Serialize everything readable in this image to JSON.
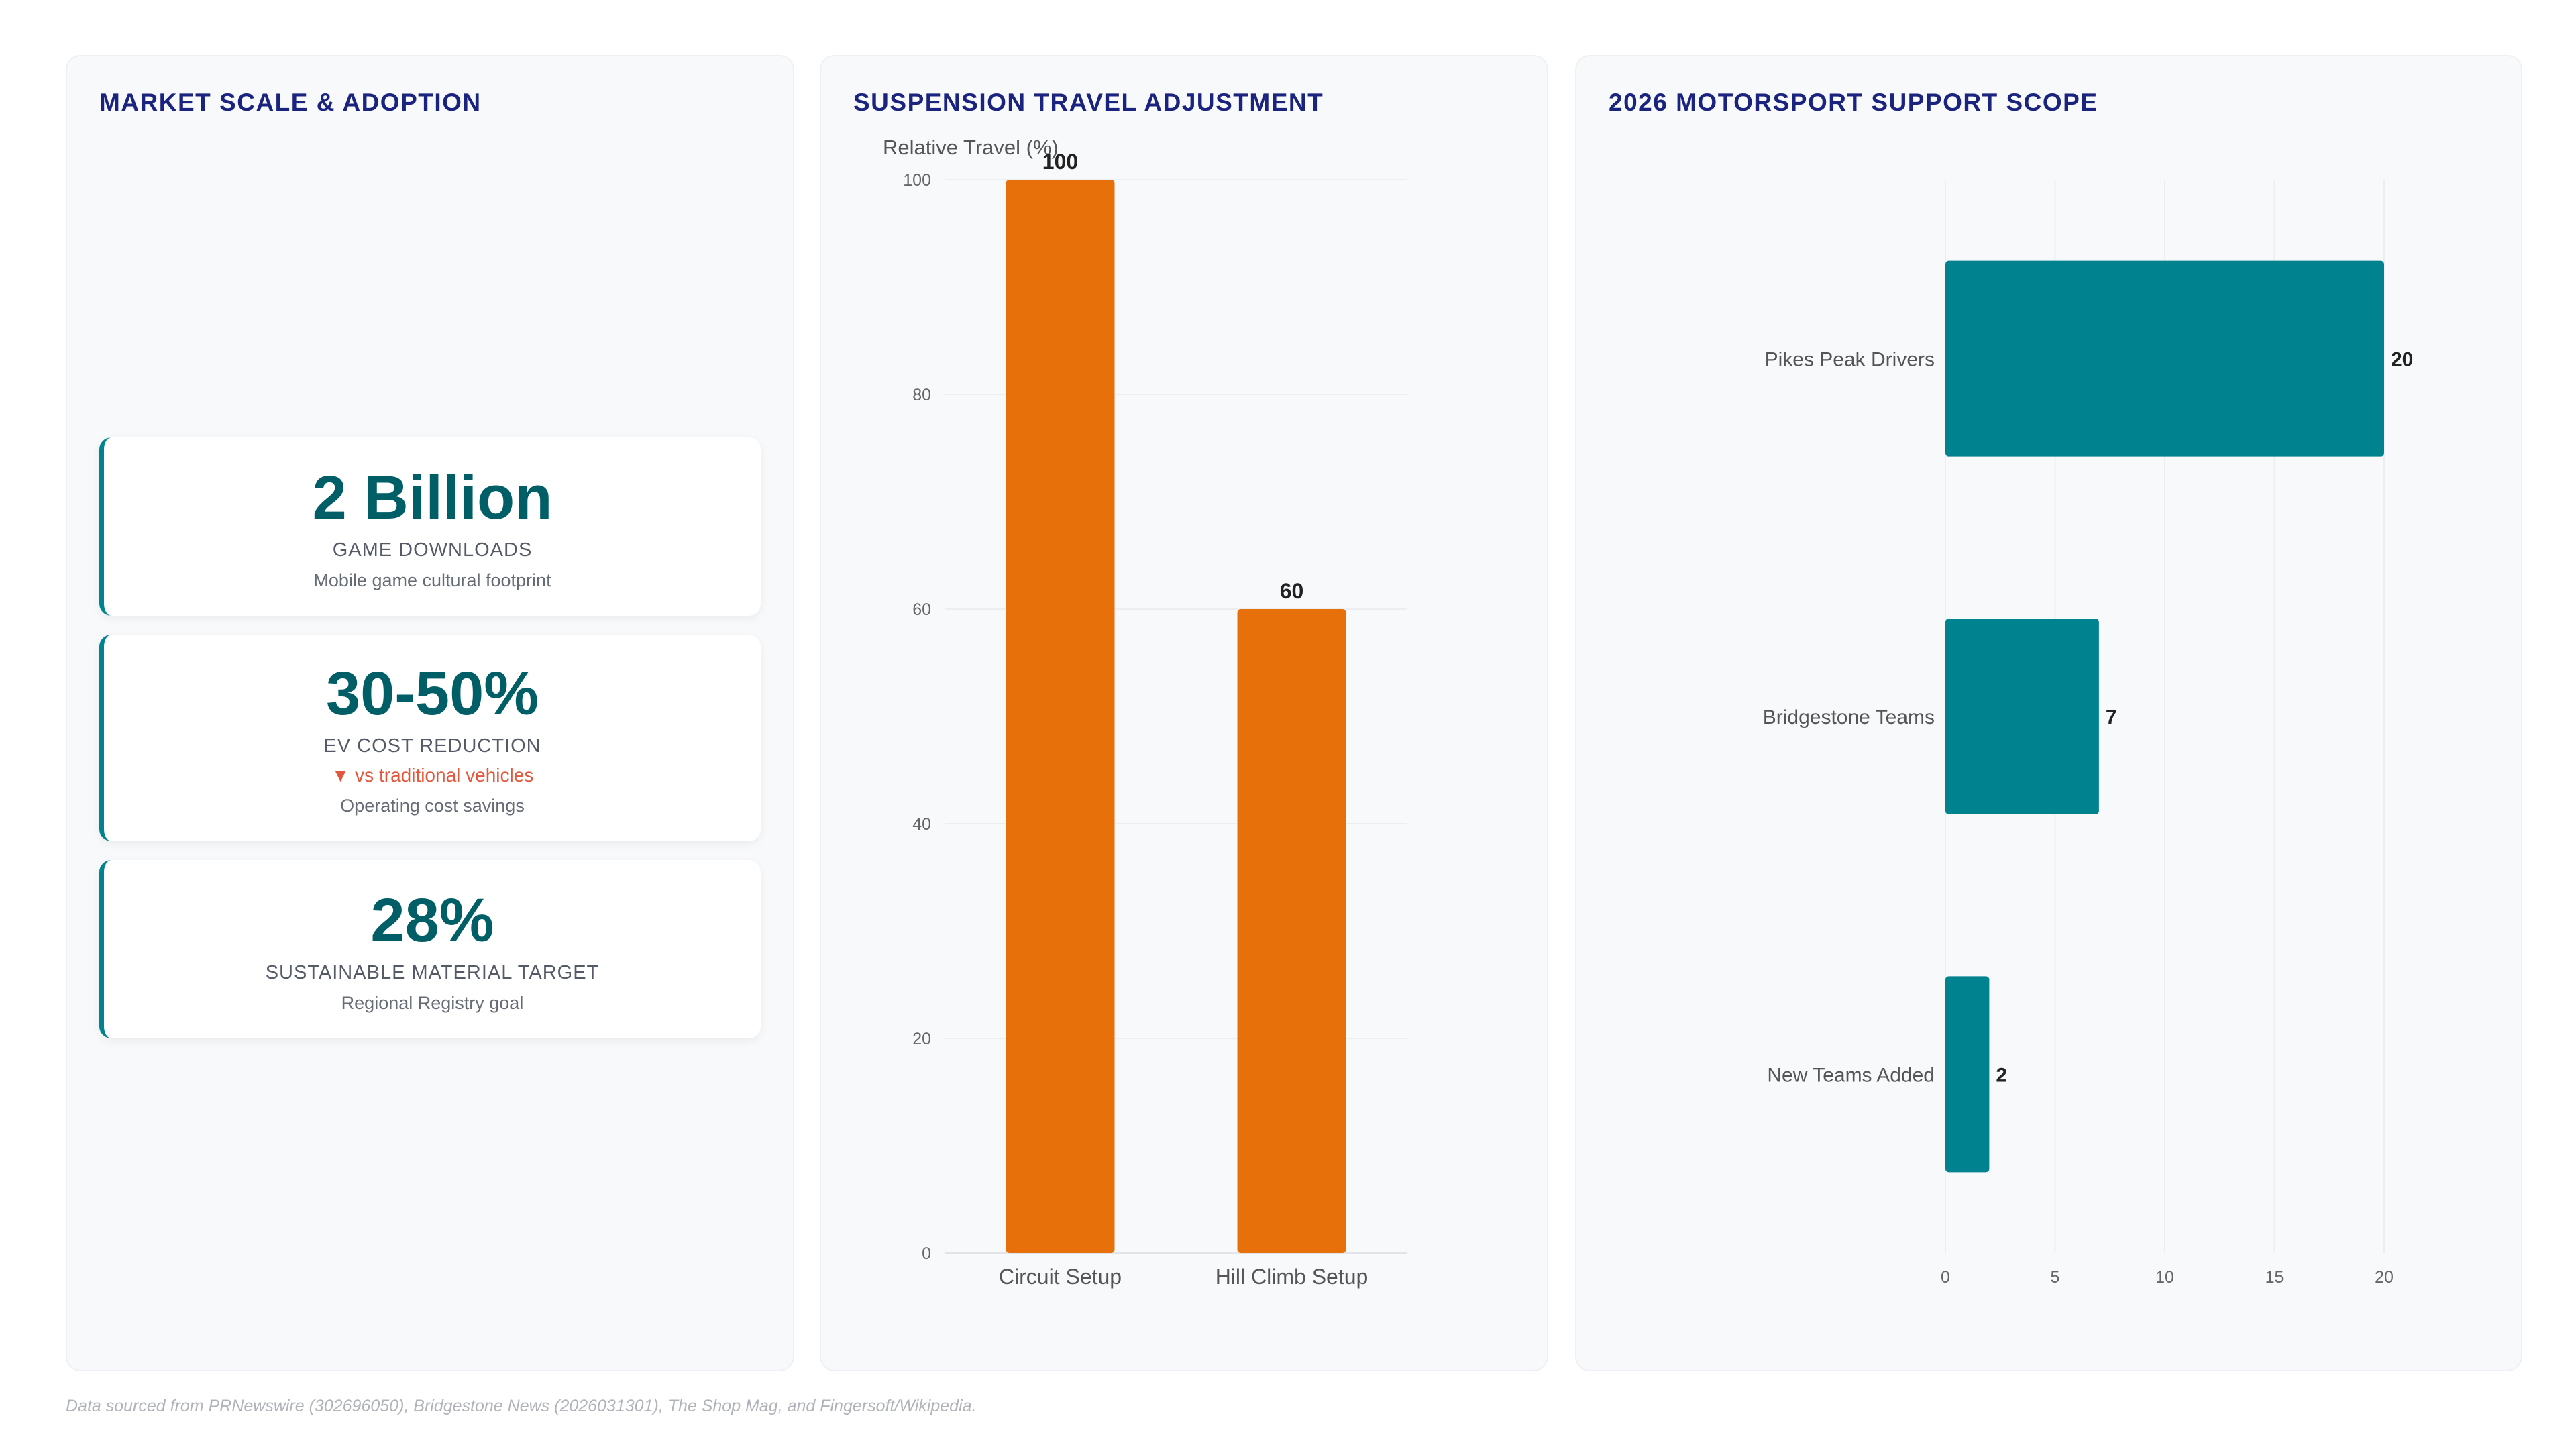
{
  "kpi_panel": {
    "title": "MARKET SCALE & ADOPTION",
    "cards": [
      {
        "value": "2 Billion",
        "label": "GAME DOWNLOADS",
        "sub": "Mobile game cultural footprint"
      },
      {
        "value": "30-50%",
        "label": "EV COST REDUCTION",
        "delta": "▼ vs traditional vehicles",
        "sub": "Operating cost savings"
      },
      {
        "value": "28%",
        "label": "SUSTAINABLE MATERIAL TARGET",
        "sub": "Regional Registry goal"
      }
    ]
  },
  "footer": "Data sourced from PRNewswire (302696050), Bridgestone News (2026031301), The Shop Mag, and Fingersoft/Wikipedia.",
  "colors": {
    "title": "#1a237e",
    "kpi_value": "#005f66",
    "kpi_accent": "#00838f",
    "delta": "#e3573c",
    "suspension_bar": "#e8700a",
    "scope_bar": "#00838f"
  },
  "chart_data": [
    {
      "type": "bar",
      "title": "SUSPENSION TRAVEL ADJUSTMENT",
      "ylabel": "Relative Travel (%)",
      "categories": [
        "Circuit Setup",
        "Hill Climb Setup"
      ],
      "values": [
        100,
        60
      ],
      "ylim": [
        0,
        100
      ],
      "yticks": [
        0,
        20,
        40,
        60,
        80,
        100
      ],
      "data_labels": true,
      "grid": true
    },
    {
      "type": "bar",
      "orientation": "horizontal",
      "title": "2026 MOTORSPORT SUPPORT SCOPE",
      "categories": [
        "Pikes Peak Drivers",
        "Bridgestone Teams",
        "New Teams Added"
      ],
      "values": [
        20,
        7,
        2
      ],
      "xlim": [
        0,
        20
      ],
      "xticks": [
        0,
        5,
        10,
        15,
        20
      ],
      "data_labels": true,
      "grid": true
    }
  ]
}
